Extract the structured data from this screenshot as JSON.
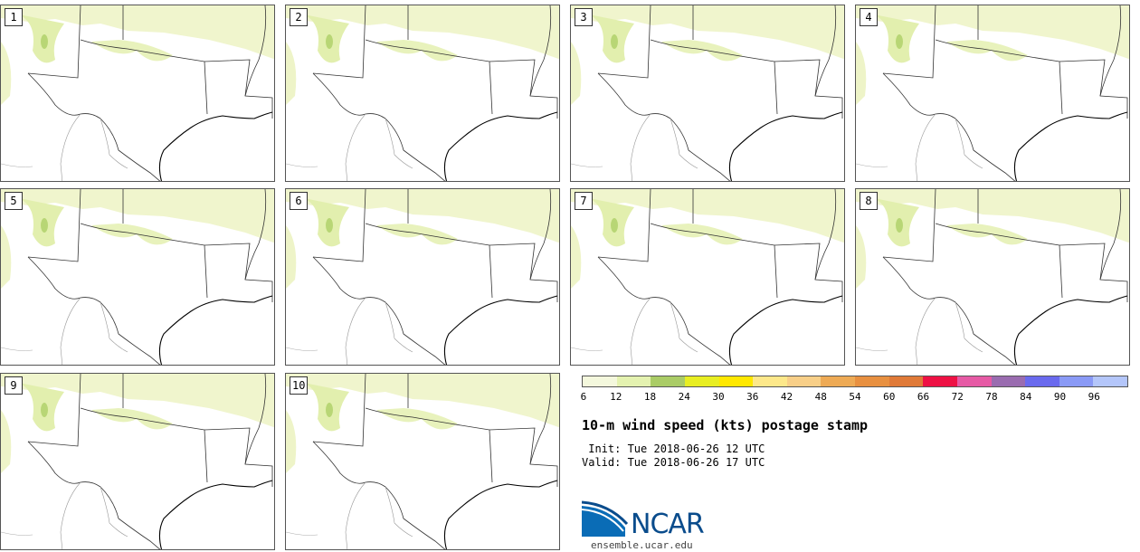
{
  "panels": [
    {
      "label": "1"
    },
    {
      "label": "2"
    },
    {
      "label": "3"
    },
    {
      "label": "4"
    },
    {
      "label": "5"
    },
    {
      "label": "6"
    },
    {
      "label": "7"
    },
    {
      "label": "8"
    },
    {
      "label": "9"
    },
    {
      "label": "10"
    }
  ],
  "colorbar": {
    "colors": [
      "#f4f8dd",
      "#e4f2b0",
      "#aacc66",
      "#e8ee22",
      "#ffe800",
      "#fde88a",
      "#f8cf88",
      "#eeaa55",
      "#e89040",
      "#e07a38",
      "#ee1144",
      "#e65aa5",
      "#9a6cb0",
      "#6a6aee",
      "#8a9af6",
      "#b4c6fa"
    ],
    "ticks": [
      "6",
      "12",
      "18",
      "24",
      "30",
      "36",
      "42",
      "48",
      "54",
      "60",
      "66",
      "72",
      "78",
      "84",
      "90",
      "96"
    ]
  },
  "title": "10-m wind speed (kts) postage stamp",
  "init": " Init: Tue 2018-06-26 12 UTC",
  "valid": "Valid: Tue 2018-06-26 17 UTC",
  "logo": {
    "text": "NCAR",
    "site": "ensemble.ucar.edu"
  }
}
